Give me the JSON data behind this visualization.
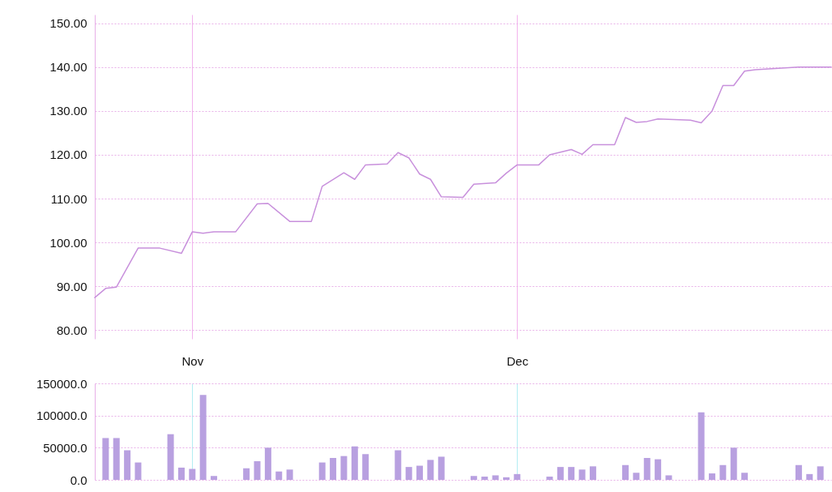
{
  "chart_data": [
    {
      "type": "line",
      "color": "#c890dc",
      "x": [
        "--10-23",
        "--10-24",
        "--10-25",
        "--10-27",
        "--10-29",
        "--10-31",
        "--11-01",
        "--11-02",
        "--11-03",
        "--11-05",
        "--11-07",
        "--11-08",
        "--11-10",
        "--11-12",
        "--11-13",
        "--11-15",
        "--11-16",
        "--11-17",
        "--11-19",
        "--11-20",
        "--11-21",
        "--11-22",
        "--11-23",
        "--11-24",
        "--11-26",
        "--11-27",
        "--11-29",
        "--11-30",
        "--12-01",
        "--12-03",
        "--12-04",
        "--12-05",
        "--12-06",
        "--12-07",
        "--12-08",
        "--12-10",
        "--12-11",
        "--12-12",
        "--12-13",
        "--12-14",
        "--12-17",
        "--12-18",
        "--12-19",
        "--12-20",
        "--12-21",
        "--12-22",
        "--12-23",
        "--12-27",
        "--12-30"
      ],
      "values": [
        87.4,
        89.5,
        89.8,
        98.7,
        98.7,
        97.5,
        102.4,
        102.1,
        102.4,
        102.4,
        108.8,
        108.9,
        104.8,
        104.8,
        112.8,
        115.9,
        114.4,
        117.7,
        117.9,
        120.5,
        119.3,
        115.6,
        114.4,
        110.4,
        110.3,
        113.3,
        113.6,
        115.8,
        117.7,
        117.7,
        120.0,
        120.6,
        121.2,
        120.1,
        122.3,
        122.3,
        128.5,
        127.4,
        127.6,
        128.2,
        127.9,
        127.3,
        130.0,
        135.8,
        135.8,
        139.1,
        139.4,
        140.0,
        140.0
      ],
      "xlim": [
        "--10-23",
        "--12-30"
      ],
      "ylim": [
        78,
        152
      ],
      "xticks": [
        {
          "value": "--11-01",
          "label": "Nov"
        },
        {
          "value": "--12-01",
          "label": "Dec"
        }
      ],
      "yticks": [
        {
          "value": 80,
          "label": "80.00"
        },
        {
          "value": 90,
          "label": "90.00"
        },
        {
          "value": 100,
          "label": "100.00"
        },
        {
          "value": 110,
          "label": "110.00"
        },
        {
          "value": 120,
          "label": "120.00"
        },
        {
          "value": 130,
          "label": "130.00"
        },
        {
          "value": 140,
          "label": "140.00"
        },
        {
          "value": 150,
          "label": "150.00"
        }
      ],
      "grid": true,
      "tick_labels": "y"
    },
    {
      "type": "bar",
      "color": "#b8a0e0",
      "x": [
        "--10-24",
        "--10-25",
        "--10-26",
        "--10-27",
        "--10-30",
        "--10-31",
        "--11-01",
        "--11-02",
        "--11-03",
        "--11-06",
        "--11-07",
        "--11-08",
        "--11-09",
        "--11-10",
        "--11-13",
        "--11-14",
        "--11-15",
        "--11-16",
        "--11-17",
        "--11-20",
        "--11-21",
        "--11-22",
        "--11-23",
        "--11-24",
        "--11-27",
        "--11-28",
        "--11-29",
        "--11-30",
        "--12-01",
        "--12-04",
        "--12-05",
        "--12-06",
        "--12-07",
        "--12-08",
        "--12-11",
        "--12-12",
        "--12-13",
        "--12-14",
        "--12-15",
        "--12-18",
        "--12-19",
        "--12-20",
        "--12-21",
        "--12-22",
        "--12-27",
        "--12-28",
        "--12-29"
      ],
      "values": [
        65000,
        65000,
        46000,
        27000,
        71000,
        19000,
        17000,
        132000,
        6000,
        18000,
        29000,
        50000,
        13000,
        16000,
        27000,
        34000,
        37000,
        52000,
        40000,
        46000,
        20000,
        22000,
        31000,
        36000,
        6000,
        5000,
        7000,
        4000,
        9000,
        5000,
        20000,
        20000,
        16000,
        21000,
        23000,
        11000,
        34000,
        32000,
        7000,
        105000,
        10000,
        23000,
        50000,
        11000,
        23000,
        9000,
        21000
      ],
      "xlim": [
        "--10-23",
        "--12-30"
      ],
      "ylim": [
        0,
        150000
      ],
      "xticks": [
        {
          "value": "--11-01",
          "label": "Nov"
        },
        {
          "value": "--12-01",
          "label": "Dec"
        }
      ],
      "yticks": [
        {
          "value": 0,
          "label": "0.0"
        },
        {
          "value": 50000,
          "label": "50000.0"
        },
        {
          "value": 100000,
          "label": "100000.0"
        },
        {
          "value": 150000,
          "label": "150000.0"
        }
      ],
      "grid": true
    }
  ]
}
